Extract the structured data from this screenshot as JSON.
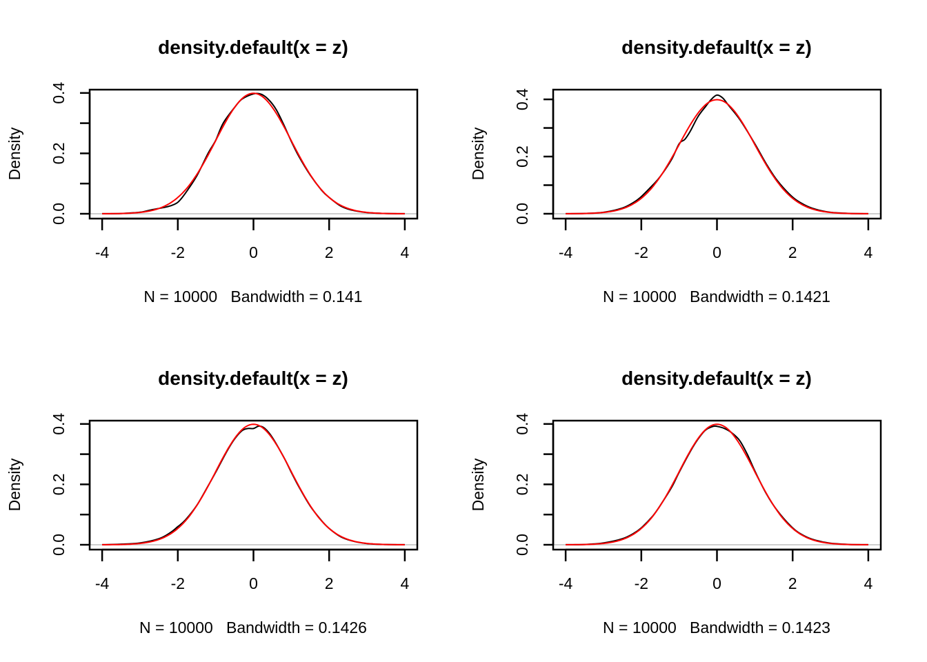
{
  "chart_data": [
    {
      "type": "line",
      "title": "density.default(x = z)",
      "xlabel": "N = 10000   Bandwidth = 0.141",
      "ylabel": "Density",
      "xlim": [
        -4.33,
        4.33
      ],
      "ylim": [
        -0.016,
        0.411
      ],
      "x_ticks": [
        -4,
        -2,
        0,
        2,
        4
      ],
      "x_tick_labels": [
        "-4",
        "-2",
        "0",
        "2",
        "4"
      ],
      "y_ticks": [
        0.0,
        0.1,
        0.2,
        0.3,
        0.4
      ],
      "y_tick_labels": [
        "0.0",
        "",
        "0.2",
        "",
        "0.4"
      ],
      "grid": false,
      "baseline": 0,
      "series": [
        {
          "name": "kernel density estimate",
          "color": "#000000",
          "x": [
            -4,
            -3.5,
            -3,
            -2.7,
            -2.4,
            -2.2,
            -2,
            -1.8,
            -1.5,
            -1.2,
            -1,
            -0.8,
            -0.5,
            -0.3,
            0,
            0.2,
            0.4,
            0.6,
            0.8,
            1,
            1.2,
            1.5,
            1.8,
            2,
            2.3,
            2.6,
            3,
            3.5,
            4
          ],
          "y": [
            0.0001,
            0.001,
            0.005,
            0.013,
            0.02,
            0.026,
            0.038,
            0.068,
            0.125,
            0.2,
            0.243,
            0.3,
            0.352,
            0.38,
            0.397,
            0.396,
            0.378,
            0.345,
            0.295,
            0.24,
            0.19,
            0.128,
            0.078,
            0.054,
            0.026,
            0.012,
            0.004,
            0.001,
            0.0001
          ]
        },
        {
          "name": "normal density",
          "color": "#ff0000",
          "function": "dnorm",
          "mean": 0,
          "sd": 1
        }
      ]
    },
    {
      "type": "line",
      "title": "density.default(x = z)",
      "xlabel": "N = 10000   Bandwidth = 0.1421",
      "ylabel": "Density",
      "xlim": [
        -4.33,
        4.33
      ],
      "ylim": [
        -0.017,
        0.434
      ],
      "x_ticks": [
        -4,
        -2,
        0,
        2,
        4
      ],
      "x_tick_labels": [
        "-4",
        "-2",
        "0",
        "2",
        "4"
      ],
      "y_ticks": [
        0.0,
        0.1,
        0.2,
        0.3,
        0.4
      ],
      "y_tick_labels": [
        "0.0",
        "",
        "0.2",
        "",
        "0.4"
      ],
      "grid": false,
      "baseline": 0,
      "series": [
        {
          "name": "kernel density estimate",
          "color": "#000000",
          "x": [
            -4,
            -3.5,
            -3,
            -2.5,
            -2.2,
            -2,
            -1.7,
            -1.5,
            -1.2,
            -1,
            -0.85,
            -0.7,
            -0.5,
            -0.3,
            -0.15,
            0,
            0.15,
            0.3,
            0.6,
            1,
            1.3,
            1.6,
            2,
            2.3,
            2.6,
            3,
            3.5,
            4
          ],
          "y": [
            0.0001,
            0.001,
            0.005,
            0.02,
            0.04,
            0.06,
            0.1,
            0.13,
            0.19,
            0.245,
            0.26,
            0.29,
            0.34,
            0.375,
            0.4,
            0.415,
            0.405,
            0.38,
            0.33,
            0.245,
            0.175,
            0.115,
            0.058,
            0.032,
            0.016,
            0.005,
            0.001,
            0.0001
          ]
        },
        {
          "name": "normal density",
          "color": "#ff0000",
          "function": "dnorm",
          "mean": 0,
          "sd": 1
        }
      ]
    },
    {
      "type": "line",
      "title": "density.default(x = z)",
      "xlabel": "N = 10000   Bandwidth = 0.1426",
      "ylabel": "Density",
      "xlim": [
        -4.33,
        4.33
      ],
      "ylim": [
        -0.016,
        0.411
      ],
      "x_ticks": [
        -4,
        -2,
        0,
        2,
        4
      ],
      "x_tick_labels": [
        "-4",
        "-2",
        "0",
        "2",
        "4"
      ],
      "y_ticks": [
        0.0,
        0.1,
        0.2,
        0.3,
        0.4
      ],
      "y_tick_labels": [
        "0.0",
        "",
        "0.2",
        "",
        "0.4"
      ],
      "grid": false,
      "baseline": 0,
      "series": [
        {
          "name": "kernel density estimate",
          "color": "#000000",
          "x": [
            -4,
            -3.5,
            -3,
            -2.5,
            -2.2,
            -2,
            -1.8,
            -1.5,
            -1.2,
            -1,
            -0.7,
            -0.5,
            -0.3,
            -0.15,
            0,
            0.15,
            0.3,
            0.5,
            0.8,
            1,
            1.2,
            1.5,
            1.8,
            2,
            2.3,
            2.6,
            3,
            3.5,
            4
          ],
          "y": [
            0.0001,
            0.002,
            0.006,
            0.02,
            0.04,
            0.06,
            0.082,
            0.13,
            0.195,
            0.24,
            0.31,
            0.35,
            0.378,
            0.385,
            0.385,
            0.393,
            0.385,
            0.355,
            0.29,
            0.24,
            0.192,
            0.128,
            0.08,
            0.054,
            0.027,
            0.013,
            0.004,
            0.001,
            0.0001
          ]
        },
        {
          "name": "normal density",
          "color": "#ff0000",
          "function": "dnorm",
          "mean": 0,
          "sd": 1
        }
      ]
    },
    {
      "type": "line",
      "title": "density.default(x = z)",
      "xlabel": "N = 10000   Bandwidth = 0.1423",
      "ylabel": "Density",
      "xlim": [
        -4.33,
        4.33
      ],
      "ylim": [
        -0.016,
        0.411
      ],
      "x_ticks": [
        -4,
        -2,
        0,
        2,
        4
      ],
      "x_tick_labels": [
        "-4",
        "-2",
        "0",
        "2",
        "4"
      ],
      "y_ticks": [
        0.0,
        0.1,
        0.2,
        0.3,
        0.4
      ],
      "y_tick_labels": [
        "0.0",
        "",
        "0.2",
        "",
        "0.4"
      ],
      "grid": false,
      "baseline": 0,
      "series": [
        {
          "name": "kernel density estimate",
          "color": "#000000",
          "x": [
            -4,
            -3.5,
            -3,
            -2.5,
            -2.2,
            -2,
            -1.7,
            -1.5,
            -1.2,
            -1,
            -0.7,
            -0.5,
            -0.3,
            -0.1,
            0,
            0.2,
            0.4,
            0.6,
            0.8,
            1,
            1.3,
            1.6,
            2,
            2.3,
            2.6,
            3,
            3.5,
            4
          ],
          "y": [
            0.0001,
            0.001,
            0.006,
            0.02,
            0.038,
            0.056,
            0.095,
            0.13,
            0.19,
            0.24,
            0.31,
            0.35,
            0.38,
            0.392,
            0.392,
            0.385,
            0.37,
            0.345,
            0.3,
            0.245,
            0.17,
            0.112,
            0.056,
            0.03,
            0.015,
            0.005,
            0.001,
            0.0001
          ]
        },
        {
          "name": "normal density",
          "color": "#ff0000",
          "function": "dnorm",
          "mean": 0,
          "sd": 1
        }
      ]
    }
  ]
}
